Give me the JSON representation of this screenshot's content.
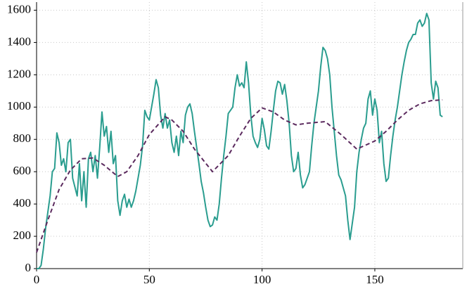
{
  "chart_data": {
    "type": "line",
    "xlim": [
      0,
      189
    ],
    "ylim": [
      0,
      1650
    ],
    "xticks": [
      0,
      50,
      100,
      150
    ],
    "yticks": [
      0,
      200,
      400,
      600,
      800,
      1000,
      1200,
      1400,
      1600
    ],
    "grid": true,
    "series": [
      {
        "color": "#2a9d8f",
        "dashed": false,
        "x": [
          0,
          1,
          2,
          3,
          4,
          5,
          6,
          7,
          8,
          9,
          10,
          11,
          12,
          13,
          14,
          15,
          16,
          18,
          19,
          20,
          21,
          22,
          23,
          24,
          25,
          26,
          27,
          28,
          29,
          30,
          31,
          32,
          33,
          34,
          35,
          36,
          37,
          38,
          39,
          40,
          41,
          42,
          43,
          44,
          45,
          46,
          47,
          48,
          49,
          50,
          52,
          53,
          54,
          55,
          56,
          57,
          58,
          59,
          60,
          61,
          62,
          63,
          64,
          65,
          66,
          67,
          68,
          69,
          70,
          71,
          72,
          73,
          74,
          75,
          76,
          77,
          78,
          79,
          80,
          81,
          82,
          83,
          84,
          85,
          87,
          88,
          89,
          90,
          91,
          92,
          93,
          94,
          95,
          96,
          97,
          98,
          99,
          100,
          101,
          102,
          103,
          104,
          105,
          106,
          107,
          108,
          109,
          110,
          111,
          112,
          113,
          114,
          115,
          116,
          117,
          118,
          119,
          121,
          122,
          123,
          124,
          125,
          126,
          127,
          128,
          129,
          130,
          131,
          132,
          133,
          134,
          135,
          136,
          137,
          138,
          139,
          140,
          141,
          142,
          143,
          144,
          145,
          146,
          147,
          148,
          149,
          150,
          151,
          152,
          153,
          154,
          155,
          156,
          157,
          158,
          159,
          160,
          161,
          162,
          163,
          164,
          165,
          166,
          167,
          168,
          169,
          170,
          171,
          172,
          173,
          174,
          175,
          176,
          177,
          178,
          179,
          180
        ],
        "values": [
          0,
          0,
          20,
          120,
          250,
          350,
          450,
          600,
          620,
          840,
          780,
          640,
          680,
          600,
          780,
          800,
          560,
          450,
          650,
          420,
          600,
          380,
          680,
          720,
          600,
          700,
          560,
          750,
          970,
          820,
          880,
          720,
          850,
          650,
          700,
          420,
          330,
          420,
          460,
          380,
          430,
          380,
          420,
          480,
          560,
          640,
          760,
          980,
          940,
          920,
          1080,
          1170,
          1120,
          950,
          870,
          960,
          870,
          920,
          780,
          720,
          820,
          700,
          850,
          780,
          950,
          1000,
          1020,
          960,
          850,
          750,
          650,
          540,
          470,
          380,
          300,
          260,
          270,
          320,
          300,
          400,
          560,
          700,
          820,
          960,
          1000,
          1120,
          1200,
          1130,
          1150,
          1120,
          1280,
          1150,
          950,
          820,
          780,
          750,
          800,
          930,
          860,
          760,
          740,
          850,
          980,
          1100,
          1160,
          1150,
          1080,
          1140,
          1040,
          900,
          700,
          600,
          620,
          720,
          580,
          500,
          520,
          600,
          760,
          900,
          1000,
          1100,
          1250,
          1370,
          1350,
          1300,
          1200,
          1000,
          850,
          700,
          580,
          550,
          500,
          450,
          300,
          180,
          280,
          380,
          600,
          720,
          800,
          870,
          900,
          1050,
          1100,
          950,
          1050,
          980,
          780,
          850,
          650,
          540,
          560,
          700,
          820,
          920,
          1000,
          1100,
          1200,
          1280,
          1350,
          1400,
          1420,
          1450,
          1450,
          1520,
          1540,
          1500,
          1520,
          1580,
          1540,
          1150,
          1050,
          1160,
          1120,
          950,
          940
        ]
      },
      {
        "color": "#5b2a5e",
        "dashed": true,
        "x": [
          0,
          5,
          10,
          15,
          20,
          25,
          30,
          36,
          40,
          45,
          50,
          57,
          60,
          65,
          70,
          78,
          85,
          90,
          95,
          100,
          105,
          110,
          115,
          120,
          128,
          135,
          142,
          150,
          155,
          160,
          165,
          170,
          175,
          180
        ],
        "values": [
          100,
          300,
          490,
          610,
          680,
          685,
          640,
          570,
          600,
          700,
          830,
          940,
          920,
          850,
          740,
          600,
          700,
          820,
          930,
          995,
          970,
          920,
          890,
          900,
          910,
          830,
          740,
          790,
          850,
          920,
          980,
          1020,
          1040,
          1045
        ]
      }
    ]
  }
}
